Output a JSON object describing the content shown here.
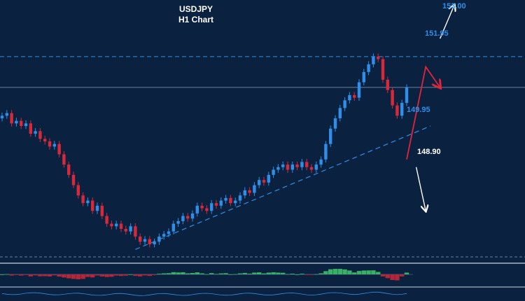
{
  "header": {
    "symbol": "USDJPY",
    "timeframe": "H1 Chart"
  },
  "colors": {
    "background": "#0b2140",
    "bull_candle": "#2f8fe8",
    "bear_candle": "#d8293a",
    "level_blue": "#2f8fe8",
    "arrow_red": "#e2253a",
    "arrow_white": "#ffffff",
    "osc_green": "#3fbf6a",
    "osc_red": "#c6283a"
  },
  "chart_data": {
    "type": "candlestick",
    "symbol": "USDJPY",
    "timeframe": "H1",
    "ylim": [
      148.4,
      153.3
    ],
    "closes": [
      151.05,
      151.1,
      150.9,
      150.95,
      150.85,
      150.9,
      150.7,
      150.75,
      150.6,
      150.55,
      150.45,
      150.5,
      150.3,
      150.1,
      149.9,
      149.7,
      149.5,
      149.35,
      149.4,
      149.2,
      149.3,
      149.1,
      148.95,
      148.9,
      148.95,
      148.85,
      148.8,
      148.9,
      148.7,
      148.6,
      148.65,
      148.55,
      148.6,
      148.7,
      148.75,
      148.8,
      148.95,
      149.0,
      149.1,
      149.05,
      149.15,
      149.3,
      149.25,
      149.2,
      149.35,
      149.3,
      149.4,
      149.45,
      149.35,
      149.4,
      149.5,
      149.6,
      149.55,
      149.7,
      149.8,
      149.75,
      149.9,
      150.0,
      150.05,
      150.1,
      150.0,
      150.1,
      150.05,
      150.15,
      150.05,
      150.0,
      150.1,
      150.2,
      150.5,
      150.8,
      151.0,
      151.2,
      151.35,
      151.45,
      151.4,
      151.7,
      151.9,
      152.05,
      152.2,
      152.15,
      151.75,
      151.55,
      151.25,
      151.05,
      151.3,
      151.6
    ],
    "levels": [
      {
        "label": "153.00",
        "value": 153.0
      },
      {
        "label": "151.95",
        "value": 151.95
      },
      {
        "label": "149.95",
        "value": 149.95
      },
      {
        "label": "148.90",
        "value": 148.9
      }
    ],
    "horizontal_line": 151.6,
    "resistance_line": 152.2,
    "support_trendline": {
      "from": [
        28,
        148.45
      ],
      "to": [
        90,
        150.85
      ]
    },
    "forecast_red": [
      [
        85,
        150.2
      ],
      [
        89,
        152.0
      ],
      [
        92,
        151.6
      ]
    ],
    "forecast_white_up": [
      [
        92,
        152.55
      ],
      [
        95,
        153.2
      ]
    ],
    "forecast_white_down": [
      [
        87,
        150.05
      ],
      [
        89,
        149.2
      ]
    ]
  }
}
